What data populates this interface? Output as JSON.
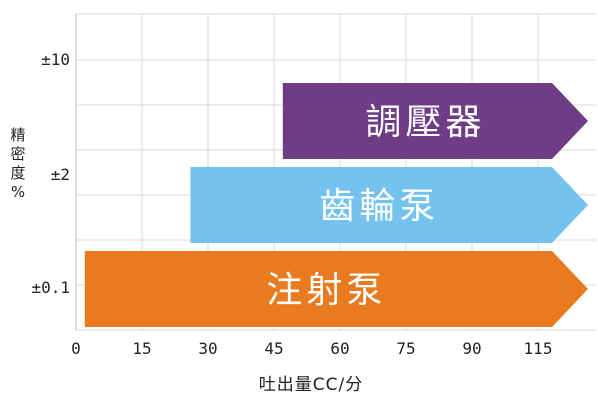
{
  "chart_data": {
    "type": "bar",
    "orientation": "horizontal",
    "xlabel": "吐出量CC/分",
    "ylabel": "精密度%",
    "x_ticks": [
      "0",
      "15",
      "30",
      "45",
      "60",
      "75",
      "90",
      "115"
    ],
    "y_ticks": [
      "±10",
      "±2",
      "±0.1"
    ],
    "grid": true,
    "series": [
      {
        "category": "±10",
        "label": "調壓器",
        "start": 47,
        "end": "beyond 115",
        "color": "#6e3d86"
      },
      {
        "category": "±2",
        "label": "齒輪泵",
        "start": 26,
        "end": "beyond 115",
        "color": "#74c3ee"
      },
      {
        "category": "±0.1",
        "label": "注射泵",
        "start": 2,
        "end": "beyond 115",
        "color": "#e97a1f"
      }
    ],
    "ylabel_chars": [
      "精",
      "密",
      "度",
      "%"
    ]
  }
}
